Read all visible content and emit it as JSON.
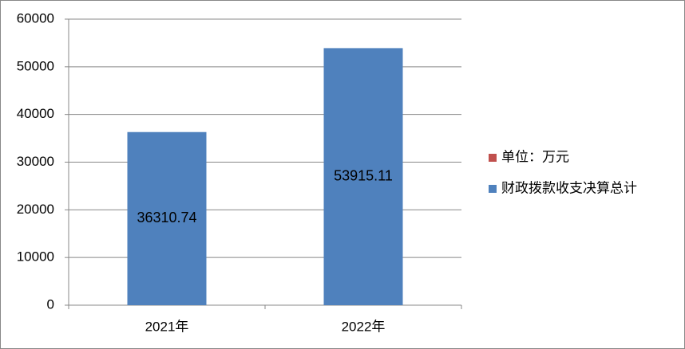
{
  "chart_data": {
    "type": "bar",
    "categories": [
      "2021年",
      "2022年"
    ],
    "series": [
      {
        "name": "单位：万元",
        "color": "#c0504d",
        "values": [
          null,
          null
        ]
      },
      {
        "name": "财政拨款收支决算总计",
        "color": "#4f81bd",
        "values": [
          36310.74,
          53915.11
        ]
      }
    ],
    "ylim": [
      0,
      60000
    ],
    "yticks": [
      0,
      10000,
      20000,
      30000,
      40000,
      50000,
      60000
    ],
    "grid": true,
    "legend": "right",
    "data_labels": true
  }
}
